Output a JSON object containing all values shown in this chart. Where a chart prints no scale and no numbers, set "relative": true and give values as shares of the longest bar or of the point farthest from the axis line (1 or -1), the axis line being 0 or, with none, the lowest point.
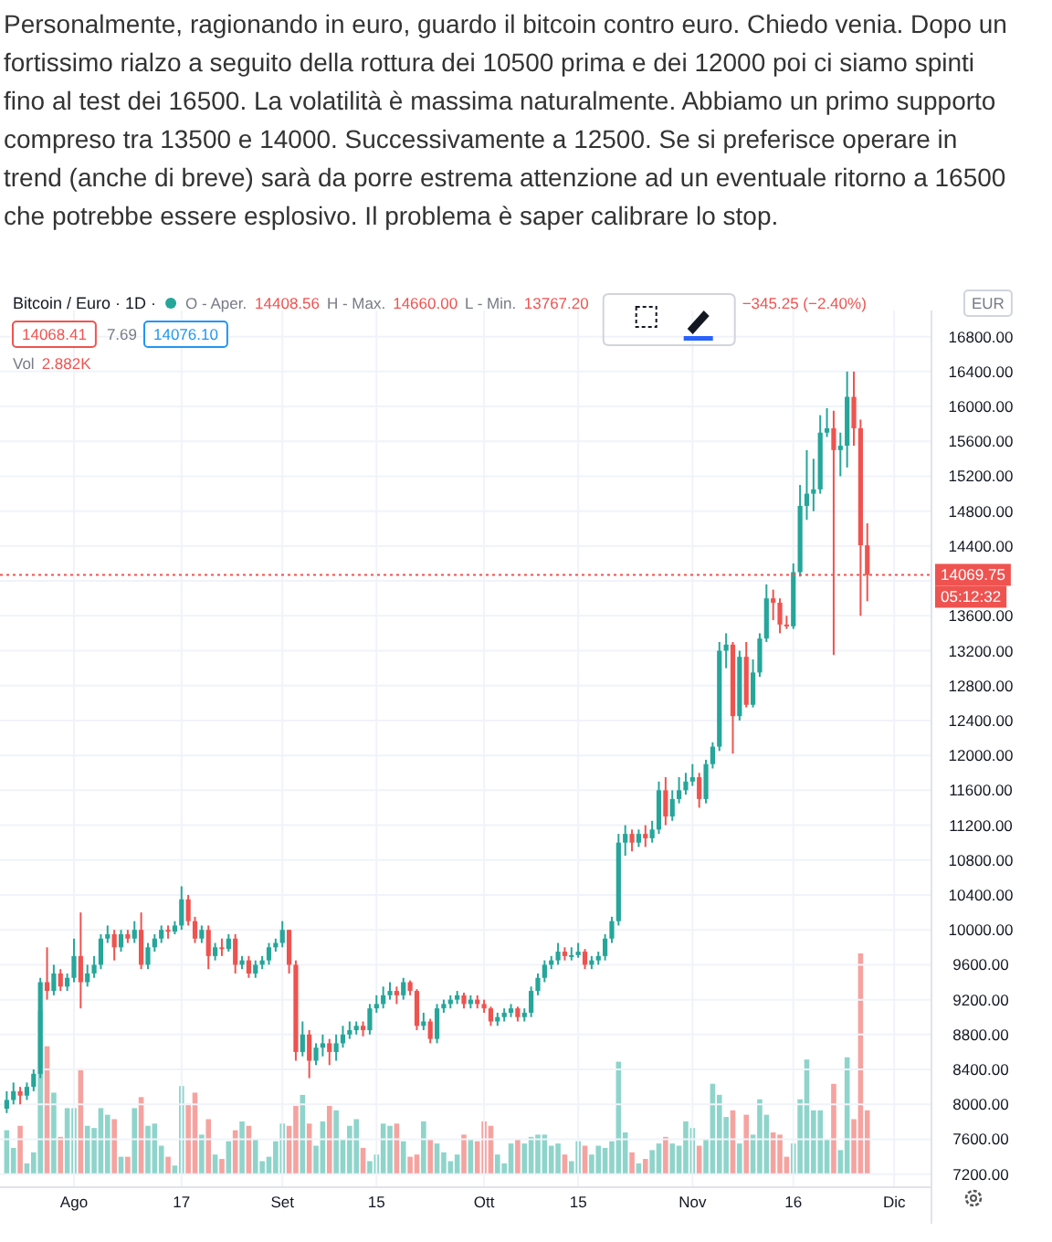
{
  "chart_data": [
    {
      "type": "candlestick",
      "title": "Bitcoin / Euro · 1D ·",
      "subtitle": "Personalmente, ragionando in euro, guardo il bitcoin contro euro. Chiedo venia. Dopo un fortissimo rialzo a seguito della rottura dei 10500 prima e dei 12000 poi ci siamo spinti fino al test dei 16500. La volatilità è massima naturalmente. Abbiamo un primo supporto compreso tra 13500 e 14000. Successivamente a 12500. Se si preferisce operare in trend (anche di breve) sarà da porre estrema attenzione ad un eventuale ritorno a 16500 che potrebbe essere esplosivo. Il problema è saper calibrare lo stop.",
      "annotations": [
        "O - Aper.",
        "14408.56",
        "H - Max.",
        "14660.00",
        "L - Min.",
        "13767.20",
        "−345.25 (−2.40%)",
        "14068.41",
        "7.69",
        "14076.10",
        "Vol",
        "2.882K",
        "EUR",
        "05:12:32"
      ],
      "x": [
        "--07-22",
        "--07-23",
        "--07-24",
        "--07-25",
        "--07-26",
        "--07-27",
        "--07-28",
        "--07-29",
        "--07-30",
        "--07-31",
        "--08-01",
        "--08-02",
        "--08-03",
        "--08-04",
        "--08-05",
        "--08-06",
        "--08-07",
        "--08-08",
        "--08-09",
        "--08-10",
        "--08-11",
        "--08-12",
        "--08-13",
        "--08-14",
        "--08-15",
        "--08-16",
        "--08-17",
        "--08-18",
        "--08-19",
        "--08-20",
        "--08-21",
        "--08-22",
        "--08-23",
        "--08-24",
        "--08-25",
        "--08-26",
        "--08-27",
        "--08-28",
        "--08-29",
        "--08-30",
        "--08-31",
        "--09-01",
        "--09-02",
        "--09-03",
        "--09-04",
        "--09-05",
        "--09-06",
        "--09-07",
        "--09-08",
        "--09-09",
        "--09-10",
        "--09-11",
        "--09-12",
        "--09-13",
        "--09-14",
        "--09-15",
        "--09-16",
        "--09-17",
        "--09-18",
        "--09-19",
        "--09-20",
        "--09-21",
        "--09-22",
        "--09-23",
        "--09-24",
        "--09-25",
        "--09-26",
        "--09-27",
        "--09-28",
        "--09-29",
        "--09-30",
        "--10-01",
        "--10-02",
        "--10-03",
        "--10-04",
        "--10-05",
        "--10-06",
        "--10-07",
        "--10-08",
        "--10-09",
        "--10-10",
        "--10-11",
        "--10-12",
        "--10-13",
        "--10-14",
        "--10-15",
        "--10-16",
        "--10-17",
        "--10-18",
        "--10-19",
        "--10-20",
        "--10-21",
        "--10-22",
        "--10-23",
        "--10-24",
        "--10-25",
        "--10-26",
        "--10-27",
        "--10-28",
        "--10-29",
        "--10-30",
        "--10-31",
        "--11-01",
        "--11-02",
        "--11-03",
        "--11-04",
        "--11-05",
        "--11-06",
        "--11-07",
        "--11-08",
        "--11-09",
        "--11-10",
        "--11-11",
        "--11-12",
        "--11-13",
        "--11-14",
        "--11-15",
        "--11-16",
        "--11-17",
        "--11-18",
        "--11-19",
        "--11-20",
        "--11-21",
        "--11-22",
        "--11-23",
        "--11-24",
        "--11-25",
        "--11-26",
        "--11-27"
      ],
      "ohlc": [
        [
          7950,
          8150,
          7900,
          8050
        ],
        [
          8050,
          8250,
          8000,
          8150
        ],
        [
          8150,
          8200,
          8000,
          8100
        ],
        [
          8100,
          8250,
          8050,
          8200
        ],
        [
          8200,
          8400,
          8150,
          8350
        ],
        [
          8350,
          9450,
          8300,
          9400
        ],
        [
          9400,
          9800,
          9200,
          9300
        ],
        [
          9300,
          9600,
          9250,
          9500
        ],
        [
          9500,
          9550,
          9300,
          9350
        ],
        [
          9350,
          9500,
          9300,
          9450
        ],
        [
          9450,
          9900,
          9400,
          9700
        ],
        [
          9700,
          10200,
          9100,
          9400
        ],
        [
          9400,
          9600,
          9350,
          9500
        ],
        [
          9500,
          9700,
          9450,
          9600
        ],
        [
          9600,
          9950,
          9550,
          9900
        ],
        [
          9900,
          10050,
          9850,
          9950
        ],
        [
          9950,
          10000,
          9650,
          9800
        ],
        [
          9800,
          10000,
          9750,
          9950
        ],
        [
          9950,
          10000,
          9850,
          9900
        ],
        [
          9900,
          10100,
          9850,
          10000
        ],
        [
          10000,
          10200,
          9550,
          9600
        ],
        [
          9600,
          9850,
          9550,
          9800
        ],
        [
          9800,
          9950,
          9750,
          9900
        ],
        [
          9900,
          10050,
          9850,
          10000
        ],
        [
          10000,
          10050,
          9900,
          9980
        ],
        [
          9980,
          10100,
          9950,
          10050
        ],
        [
          10050,
          10500,
          10000,
          10350
        ],
        [
          10350,
          10400,
          10050,
          10100
        ],
        [
          10100,
          10150,
          9850,
          9900
        ],
        [
          9900,
          10050,
          9850,
          10000
        ],
        [
          10000,
          10050,
          9550,
          9700
        ],
        [
          9700,
          9850,
          9650,
          9800
        ],
        [
          9800,
          9900,
          9700,
          9780
        ],
        [
          9780,
          9950,
          9750,
          9900
        ],
        [
          9900,
          9950,
          9500,
          9600
        ],
        [
          9600,
          9700,
          9550,
          9650
        ],
        [
          9650,
          9700,
          9450,
          9500
        ],
        [
          9500,
          9650,
          9450,
          9600
        ],
        [
          9600,
          9700,
          9550,
          9650
        ],
        [
          9650,
          9850,
          9600,
          9800
        ],
        [
          9800,
          9900,
          9750,
          9850
        ],
        [
          9850,
          10100,
          9800,
          10000
        ],
        [
          10000,
          10000,
          9500,
          9600
        ],
        [
          9600,
          9650,
          8500,
          8600
        ],
        [
          8600,
          8950,
          8550,
          8800
        ],
        [
          8800,
          8850,
          8300,
          8500
        ],
        [
          8500,
          8700,
          8450,
          8650
        ],
        [
          8650,
          8800,
          8550,
          8700
        ],
        [
          8700,
          8750,
          8450,
          8600
        ],
        [
          8600,
          8800,
          8500,
          8700
        ],
        [
          8700,
          8900,
          8650,
          8800
        ],
        [
          8800,
          8950,
          8750,
          8850
        ],
        [
          8850,
          8950,
          8800,
          8900
        ],
        [
          8900,
          8950,
          8780,
          8850
        ],
        [
          8850,
          9150,
          8800,
          9100
        ],
        [
          9100,
          9250,
          9050,
          9150
        ],
        [
          9150,
          9350,
          9100,
          9250
        ],
        [
          9250,
          9400,
          9200,
          9300
        ],
        [
          9300,
          9350,
          9150,
          9250
        ],
        [
          9250,
          9450,
          9200,
          9400
        ],
        [
          9400,
          9420,
          9250,
          9300
        ],
        [
          9300,
          9320,
          8850,
          8900
        ],
        [
          8900,
          9050,
          8850,
          8950
        ],
        [
          8950,
          8980,
          8700,
          8750
        ],
        [
          8750,
          9150,
          8700,
          9100
        ],
        [
          9100,
          9200,
          9050,
          9150
        ],
        [
          9150,
          9250,
          9100,
          9200
        ],
        [
          9200,
          9300,
          9150,
          9250
        ],
        [
          9250,
          9280,
          9100,
          9150
        ],
        [
          9150,
          9250,
          9100,
          9200
        ],
        [
          9200,
          9250,
          9100,
          9150
        ],
        [
          9150,
          9200,
          9050,
          9100
        ],
        [
          9100,
          9120,
          8900,
          8950
        ],
        [
          8950,
          9050,
          8900,
          9000
        ],
        [
          9000,
          9100,
          8950,
          9050
        ],
        [
          9050,
          9150,
          9000,
          9100
        ],
        [
          9100,
          9120,
          8950,
          9000
        ],
        [
          9000,
          9100,
          8950,
          9050
        ],
        [
          9050,
          9350,
          9000,
          9300
        ],
        [
          9300,
          9500,
          9250,
          9450
        ],
        [
          9450,
          9650,
          9400,
          9600
        ],
        [
          9600,
          9700,
          9550,
          9650
        ],
        [
          9650,
          9850,
          9600,
          9750
        ],
        [
          9750,
          9800,
          9650,
          9700
        ],
        [
          9700,
          9800,
          9650,
          9710
        ],
        [
          9710,
          9850,
          9680,
          9750
        ],
        [
          9750,
          9780,
          9550,
          9600
        ],
        [
          9600,
          9700,
          9550,
          9650
        ],
        [
          9650,
          9750,
          9600,
          9700
        ],
        [
          9700,
          9950,
          9650,
          9900
        ],
        [
          9900,
          10150,
          9850,
          10100
        ],
        [
          10100,
          11100,
          10050,
          11000
        ],
        [
          11000,
          11200,
          10850,
          11100
        ],
        [
          11100,
          11150,
          10900,
          11000
        ],
        [
          11000,
          11150,
          10950,
          11100
        ],
        [
          11100,
          11200,
          10950,
          11050
        ],
        [
          11050,
          11250,
          11000,
          11150
        ],
        [
          11150,
          11700,
          11100,
          11600
        ],
        [
          11600,
          11750,
          11200,
          11300
        ],
        [
          11300,
          11600,
          11250,
          11500
        ],
        [
          11500,
          11750,
          11450,
          11600
        ],
        [
          11600,
          11800,
          11550,
          11700
        ],
        [
          11700,
          11900,
          11650,
          11750
        ],
        [
          11750,
          11800,
          11400,
          11500
        ],
        [
          11500,
          11950,
          11450,
          11900
        ],
        [
          11900,
          12150,
          11850,
          12100
        ],
        [
          12100,
          13300,
          12050,
          13200
        ],
        [
          13200,
          13400,
          13000,
          13270
        ],
        [
          13270,
          13300,
          12020,
          12450
        ],
        [
          12450,
          13200,
          12400,
          13130
        ],
        [
          13130,
          13300,
          12550,
          12580
        ],
        [
          12580,
          13100,
          12550,
          12950
        ],
        [
          12950,
          13400,
          12900,
          13340
        ],
        [
          13340,
          13960,
          13300,
          13800
        ],
        [
          13800,
          13900,
          13550,
          13750
        ],
        [
          13750,
          13800,
          13400,
          13500
        ],
        [
          13500,
          13600,
          13450,
          13480
        ],
        [
          13480,
          14200,
          13450,
          14100
        ],
        [
          14100,
          15100,
          14050,
          14860
        ],
        [
          14860,
          15500,
          14700,
          15000
        ],
        [
          15000,
          15400,
          14800,
          15050
        ],
        [
          15050,
          15900,
          15000,
          15700
        ],
        [
          15700,
          15980,
          15650,
          15750
        ],
        [
          15750,
          15950,
          13150,
          15500
        ],
        [
          15500,
          15700,
          15200,
          15550
        ],
        [
          15550,
          16400,
          15300,
          16110
        ],
        [
          16110,
          16400,
          15550,
          15750
        ],
        [
          15750,
          15850,
          13600,
          14408.56
        ],
        [
          14408.56,
          14660,
          13767.2,
          14069.75
        ]
      ],
      "colors": [
        "#26a69a",
        "#26a69a",
        "#ef5350",
        "#26a69a",
        "#26a69a",
        "#26a69a",
        "#ef5350",
        "#26a69a",
        "#ef5350",
        "#26a69a",
        "#26a69a",
        "#ef5350",
        "#26a69a",
        "#26a69a",
        "#26a69a",
        "#26a69a",
        "#ef5350",
        "#26a69a",
        "#ef5350",
        "#26a69a",
        "#ef5350",
        "#26a69a",
        "#26a69a",
        "#26a69a",
        "#ef5350",
        "#26a69a",
        "#26a69a",
        "#ef5350",
        "#ef5350",
        "#26a69a",
        "#ef5350",
        "#26a69a",
        "#ef5350",
        "#26a69a",
        "#ef5350",
        "#26a69a",
        "#ef5350",
        "#26a69a",
        "#26a69a",
        "#26a69a",
        "#26a69a",
        "#26a69a",
        "#ef5350",
        "#ef5350",
        "#26a69a",
        "#ef5350",
        "#26a69a",
        "#26a69a",
        "#ef5350",
        "#26a69a",
        "#26a69a",
        "#26a69a",
        "#26a69a",
        "#ef5350",
        "#26a69a",
        "#26a69a",
        "#26a69a",
        "#26a69a",
        "#ef5350",
        "#26a69a",
        "#ef5350",
        "#ef5350",
        "#26a69a",
        "#ef5350",
        "#26a69a",
        "#26a69a",
        "#26a69a",
        "#26a69a",
        "#ef5350",
        "#26a69a",
        "#ef5350",
        "#ef5350",
        "#ef5350",
        "#26a69a",
        "#26a69a",
        "#26a69a",
        "#ef5350",
        "#26a69a",
        "#26a69a",
        "#26a69a",
        "#26a69a",
        "#26a69a",
        "#26a69a",
        "#ef5350",
        "#26a69a",
        "#26a69a",
        "#ef5350",
        "#26a69a",
        "#26a69a",
        "#26a69a",
        "#26a69a",
        "#26a69a",
        "#26a69a",
        "#ef5350",
        "#26a69a",
        "#ef5350",
        "#26a69a",
        "#26a69a",
        "#ef5350",
        "#26a69a",
        "#26a69a",
        "#26a69a",
        "#26a69a",
        "#ef5350",
        "#26a69a",
        "#26a69a",
        "#26a69a",
        "#26a69a",
        "#ef5350",
        "#26a69a",
        "#ef5350",
        "#26a69a",
        "#26a69a",
        "#26a69a",
        "#ef5350",
        "#ef5350",
        "#ef5350",
        "#26a69a",
        "#26a69a",
        "#26a69a",
        "#26a69a",
        "#26a69a",
        "#26a69a",
        "#ef5350",
        "#26a69a",
        "#26a69a",
        "#ef5350",
        "#ef5350",
        "#ef5350"
      ],
      "xlim": [
        "--07-21",
        "--12-06"
      ],
      "xticks": [
        {
          "value": "--08-01",
          "label": "Ago"
        },
        {
          "value": "--08-17",
          "label": "17"
        },
        {
          "value": "--09-01",
          "label": "Set"
        },
        {
          "value": "--09-15",
          "label": "15"
        },
        {
          "value": "--10-01",
          "label": "Ott"
        },
        {
          "value": "--10-15",
          "label": "15"
        },
        {
          "value": "--11-01",
          "label": "Nov"
        },
        {
          "value": "--11-16",
          "label": "16"
        },
        {
          "value": "--12-01",
          "label": "Dic"
        }
      ],
      "ylim": [
        7050,
        17100
      ],
      "yticks": [
        {
          "value": 7200,
          "label": "7200.00"
        },
        {
          "value": 7600,
          "label": "7600.00"
        },
        {
          "value": 8000,
          "label": "8000.00"
        },
        {
          "value": 8400,
          "label": "8400.00"
        },
        {
          "value": 8800,
          "label": "8800.00"
        },
        {
          "value": 9200,
          "label": "9200.00"
        },
        {
          "value": 9600,
          "label": "9600.00"
        },
        {
          "value": 10000,
          "label": "10000.00"
        },
        {
          "value": 10400,
          "label": "10400.00"
        },
        {
          "value": 10800,
          "label": "10800.00"
        },
        {
          "value": 11200,
          "label": "11200.00"
        },
        {
          "value": 11600,
          "label": "11600.00"
        },
        {
          "value": 12000,
          "label": "12000.00"
        },
        {
          "value": 12400,
          "label": "12400.00"
        },
        {
          "value": 12800,
          "label": "12800.00"
        },
        {
          "value": 13200,
          "label": "13200.00"
        },
        {
          "value": 13600,
          "label": "13600.00"
        },
        {
          "value": 14000,
          "label": null
        },
        {
          "value": 14400,
          "label": "14400.00"
        },
        {
          "value": 14800,
          "label": "14800.00"
        },
        {
          "value": 15200,
          "label": "15200.00"
        },
        {
          "value": 15600,
          "label": "15600.00"
        },
        {
          "value": 16000,
          "label": "16000.00"
        },
        {
          "value": 16400,
          "label": "16400.00"
        },
        {
          "value": 16800,
          "label": "16800.00"
        }
      ],
      "ref_lines": [
        {
          "axis": "y",
          "value": 14069.75,
          "label": "14069.75",
          "color": "#ef5350",
          "line_style": "dotted"
        }
      ],
      "grid": true
    },
    {
      "type": "bar",
      "relative": true,
      "tick_labels": false,
      "xlim": [
        "--07-21",
        "--12-06"
      ],
      "x": [
        "--07-22",
        "--07-23",
        "--07-24",
        "--07-25",
        "--07-26",
        "--07-27",
        "--07-28",
        "--07-29",
        "--07-30",
        "--07-31",
        "--08-01",
        "--08-02",
        "--08-03",
        "--08-04",
        "--08-05",
        "--08-06",
        "--08-07",
        "--08-08",
        "--08-09",
        "--08-10",
        "--08-11",
        "--08-12",
        "--08-13",
        "--08-14",
        "--08-15",
        "--08-16",
        "--08-17",
        "--08-18",
        "--08-19",
        "--08-20",
        "--08-21",
        "--08-22",
        "--08-23",
        "--08-24",
        "--08-25",
        "--08-26",
        "--08-27",
        "--08-28",
        "--08-29",
        "--08-30",
        "--08-31",
        "--09-01",
        "--09-02",
        "--09-03",
        "--09-04",
        "--09-05",
        "--09-06",
        "--09-07",
        "--09-08",
        "--09-09",
        "--09-10",
        "--09-11",
        "--09-12",
        "--09-13",
        "--09-14",
        "--09-15",
        "--09-16",
        "--09-17",
        "--09-18",
        "--09-19",
        "--09-20",
        "--09-21",
        "--09-22",
        "--09-23",
        "--09-24",
        "--09-25",
        "--09-26",
        "--09-27",
        "--09-28",
        "--09-29",
        "--09-30",
        "--10-01",
        "--10-02",
        "--10-03",
        "--10-04",
        "--10-05",
        "--10-06",
        "--10-07",
        "--10-08",
        "--10-09",
        "--10-10",
        "--10-11",
        "--10-12",
        "--10-13",
        "--10-14",
        "--10-15",
        "--10-16",
        "--10-17",
        "--10-18",
        "--10-19",
        "--10-20",
        "--10-21",
        "--10-22",
        "--10-23",
        "--10-24",
        "--10-25",
        "--10-26",
        "--10-27",
        "--10-28",
        "--10-29",
        "--10-30",
        "--10-31",
        "--11-01",
        "--11-02",
        "--11-03",
        "--11-04",
        "--11-05",
        "--11-06",
        "--11-07",
        "--11-08",
        "--11-09",
        "--11-10",
        "--11-11",
        "--11-12",
        "--11-13",
        "--11-14",
        "--11-15",
        "--11-16",
        "--11-17",
        "--11-18",
        "--11-19",
        "--11-20",
        "--11-21",
        "--11-22",
        "--11-23",
        "--11-24",
        "--11-25",
        "--11-26",
        "--11-27"
      ],
      "values": [
        0.2,
        0.12,
        0.22,
        0.05,
        0.1,
        0.74,
        0.58,
        0.37,
        0.17,
        0.3,
        0.3,
        0.48,
        0.22,
        0.21,
        0.3,
        0.27,
        0.25,
        0.08,
        0.08,
        0.3,
        0.35,
        0.22,
        0.23,
        0.13,
        0.08,
        0.04,
        0.4,
        0.32,
        0.37,
        0.18,
        0.25,
        0.09,
        0.07,
        0.15,
        0.2,
        0.24,
        0.22,
        0.16,
        0.06,
        0.08,
        0.15,
        0.23,
        0.22,
        0.31,
        0.36,
        0.23,
        0.13,
        0.24,
        0.31,
        0.29,
        0.16,
        0.22,
        0.25,
        0.12,
        0.06,
        0.09,
        0.23,
        0.22,
        0.23,
        0.15,
        0.08,
        0.09,
        0.24,
        0.16,
        0.14,
        0.1,
        0.06,
        0.09,
        0.18,
        0.16,
        0.15,
        0.24,
        0.22,
        0.09,
        0.05,
        0.14,
        0.16,
        0.14,
        0.17,
        0.18,
        0.18,
        0.13,
        0.14,
        0.09,
        0.06,
        0.15,
        0.13,
        0.09,
        0.13,
        0.12,
        0.15,
        0.51,
        0.19,
        0.1,
        0.05,
        0.07,
        0.11,
        0.14,
        0.17,
        0.14,
        0.13,
        0.24,
        0.21,
        0.13,
        0.16,
        0.41,
        0.36,
        0.26,
        0.29,
        0.14,
        0.27,
        0.18,
        0.34,
        0.27,
        0.19,
        0.18,
        0.08,
        0.14,
        0.34,
        0.52,
        0.29,
        0.29,
        0.16,
        0.41,
        0.11,
        0.53,
        0.25,
        1,
        0.29
      ],
      "colors": [
        "#8fd4cb",
        "#8fd4cb",
        "#f5a3a0",
        "#8fd4cb",
        "#8fd4cb",
        "#8fd4cb",
        "#f5a3a0",
        "#8fd4cb",
        "#f5a3a0",
        "#8fd4cb",
        "#8fd4cb",
        "#f5a3a0",
        "#8fd4cb",
        "#8fd4cb",
        "#8fd4cb",
        "#8fd4cb",
        "#f5a3a0",
        "#8fd4cb",
        "#f5a3a0",
        "#8fd4cb",
        "#f5a3a0",
        "#8fd4cb",
        "#8fd4cb",
        "#8fd4cb",
        "#f5a3a0",
        "#8fd4cb",
        "#8fd4cb",
        "#f5a3a0",
        "#f5a3a0",
        "#8fd4cb",
        "#f5a3a0",
        "#8fd4cb",
        "#f5a3a0",
        "#8fd4cb",
        "#f5a3a0",
        "#8fd4cb",
        "#f5a3a0",
        "#8fd4cb",
        "#8fd4cb",
        "#8fd4cb",
        "#8fd4cb",
        "#8fd4cb",
        "#f5a3a0",
        "#f5a3a0",
        "#8fd4cb",
        "#f5a3a0",
        "#8fd4cb",
        "#8fd4cb",
        "#f5a3a0",
        "#8fd4cb",
        "#8fd4cb",
        "#8fd4cb",
        "#8fd4cb",
        "#f5a3a0",
        "#8fd4cb",
        "#8fd4cb",
        "#8fd4cb",
        "#8fd4cb",
        "#f5a3a0",
        "#8fd4cb",
        "#f5a3a0",
        "#f5a3a0",
        "#8fd4cb",
        "#f5a3a0",
        "#8fd4cb",
        "#8fd4cb",
        "#8fd4cb",
        "#8fd4cb",
        "#f5a3a0",
        "#8fd4cb",
        "#f5a3a0",
        "#f5a3a0",
        "#f5a3a0",
        "#8fd4cb",
        "#8fd4cb",
        "#8fd4cb",
        "#f5a3a0",
        "#8fd4cb",
        "#8fd4cb",
        "#8fd4cb",
        "#8fd4cb",
        "#8fd4cb",
        "#8fd4cb",
        "#f5a3a0",
        "#8fd4cb",
        "#8fd4cb",
        "#f5a3a0",
        "#8fd4cb",
        "#8fd4cb",
        "#8fd4cb",
        "#8fd4cb",
        "#8fd4cb",
        "#8fd4cb",
        "#f5a3a0",
        "#8fd4cb",
        "#f5a3a0",
        "#8fd4cb",
        "#8fd4cb",
        "#f5a3a0",
        "#8fd4cb",
        "#8fd4cb",
        "#8fd4cb",
        "#8fd4cb",
        "#f5a3a0",
        "#8fd4cb",
        "#8fd4cb",
        "#8fd4cb",
        "#8fd4cb",
        "#f5a3a0",
        "#8fd4cb",
        "#f5a3a0",
        "#8fd4cb",
        "#8fd4cb",
        "#8fd4cb",
        "#f5a3a0",
        "#f5a3a0",
        "#f5a3a0",
        "#8fd4cb",
        "#8fd4cb",
        "#8fd4cb",
        "#8fd4cb",
        "#8fd4cb",
        "#8fd4cb",
        "#f5a3a0",
        "#8fd4cb",
        "#8fd4cb",
        "#f5a3a0",
        "#f5a3a0",
        "#f5a3a0"
      ]
    }
  ]
}
